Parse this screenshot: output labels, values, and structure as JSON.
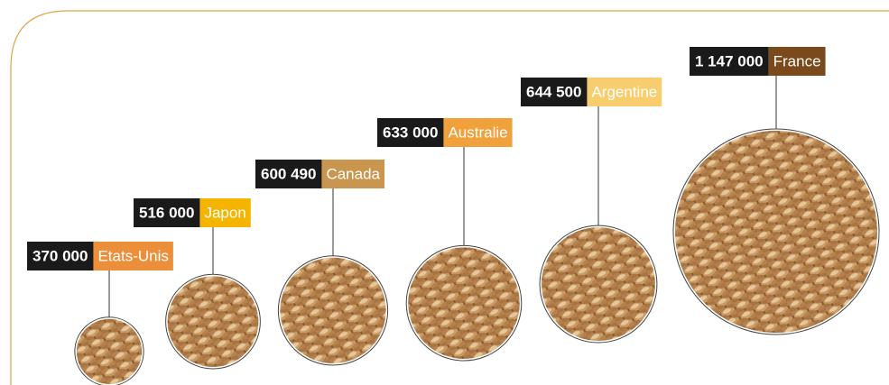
{
  "chart_data": {
    "type": "bubble",
    "categories": [
      "Etats-Unis",
      "Japon",
      "Canada",
      "Australie",
      "Argentine",
      "France"
    ],
    "values": [
      370000,
      516000,
      600490,
      633000,
      644500,
      1147000
    ],
    "value_labels": [
      "370 000",
      "516 000",
      "600 490",
      "633 000",
      "644 500",
      "1 147 000"
    ],
    "colors": [
      "#ec8f3b",
      "#f5b400",
      "#c9964f",
      "#f0a13c",
      "#f8cd6e",
      "#7a4a1c"
    ]
  }
}
